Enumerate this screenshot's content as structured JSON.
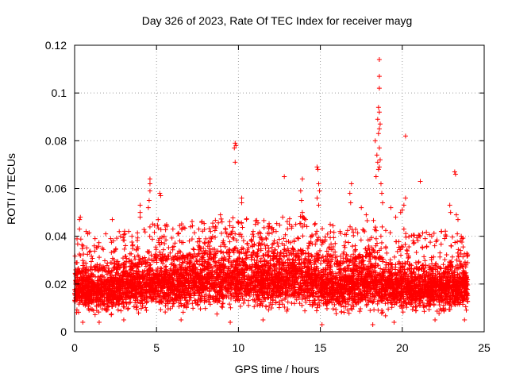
{
  "chart_data": {
    "type": "scatter",
    "title": "Day 326 of 2023, Rate Of TEC Index for receiver mayg",
    "xlabel": "GPS time / hours",
    "ylabel": "ROTI / TECUs",
    "xlim": [
      0,
      25
    ],
    "ylim": [
      0,
      0.12
    ],
    "x_ticks": [
      "0",
      "5",
      "10",
      "15",
      "20",
      "25"
    ],
    "y_ticks": [
      "0",
      "0.02",
      "0.04",
      "0.06",
      "0.08",
      "0.1",
      "0.12"
    ],
    "grid": true,
    "marker": "+",
    "color": "#ff0000",
    "series": [
      {
        "name": "ROTI",
        "baseline_profile": {
          "x": [
            0,
            1,
            2,
            3,
            4,
            5,
            6,
            7,
            8,
            9,
            10,
            11,
            12,
            13,
            14,
            15,
            16,
            17,
            18,
            19,
            20,
            21,
            22,
            23,
            24
          ],
          "typical_low": [
            0.008,
            0.008,
            0.007,
            0.008,
            0.008,
            0.008,
            0.008,
            0.009,
            0.009,
            0.009,
            0.009,
            0.009,
            0.009,
            0.009,
            0.009,
            0.008,
            0.008,
            0.008,
            0.008,
            0.008,
            0.008,
            0.008,
            0.008,
            0.008,
            0.008
          ],
          "typical_high": [
            0.024,
            0.026,
            0.025,
            0.027,
            0.028,
            0.03,
            0.03,
            0.031,
            0.032,
            0.033,
            0.033,
            0.032,
            0.031,
            0.032,
            0.033,
            0.03,
            0.028,
            0.03,
            0.032,
            0.029,
            0.027,
            0.026,
            0.026,
            0.027,
            0.027
          ]
        },
        "notable_points": [
          {
            "x": 0.3,
            "y": 0.047
          },
          {
            "x": 0.35,
            "y": 0.048
          },
          {
            "x": 0.3,
            "y": 0.043
          },
          {
            "x": 0.7,
            "y": 0.042
          },
          {
            "x": 0.8,
            "y": 0.041
          },
          {
            "x": 1.2,
            "y": 0.036
          },
          {
            "x": 1.9,
            "y": 0.041
          },
          {
            "x": 2.3,
            "y": 0.047
          },
          {
            "x": 2.2,
            "y": 0.039
          },
          {
            "x": 3.3,
            "y": 0.042
          },
          {
            "x": 3.5,
            "y": 0.04
          },
          {
            "x": 4.0,
            "y": 0.053
          },
          {
            "x": 4.0,
            "y": 0.05
          },
          {
            "x": 4.0,
            "y": 0.048
          },
          {
            "x": 4.6,
            "y": 0.064
          },
          {
            "x": 4.6,
            "y": 0.062
          },
          {
            "x": 4.6,
            "y": 0.059
          },
          {
            "x": 4.55,
            "y": 0.055
          },
          {
            "x": 4.5,
            "y": 0.052
          },
          {
            "x": 5.2,
            "y": 0.058
          },
          {
            "x": 5.25,
            "y": 0.057
          },
          {
            "x": 5.1,
            "y": 0.047
          },
          {
            "x": 6.0,
            "y": 0.043
          },
          {
            "x": 6.3,
            "y": 0.041
          },
          {
            "x": 7.0,
            "y": 0.038
          },
          {
            "x": 7.6,
            "y": 0.039
          },
          {
            "x": 8.3,
            "y": 0.042
          },
          {
            "x": 8.9,
            "y": 0.049
          },
          {
            "x": 9.0,
            "y": 0.046
          },
          {
            "x": 9.8,
            "y": 0.079
          },
          {
            "x": 9.85,
            "y": 0.078
          },
          {
            "x": 9.75,
            "y": 0.077
          },
          {
            "x": 9.8,
            "y": 0.071
          },
          {
            "x": 10.2,
            "y": 0.056
          },
          {
            "x": 10.2,
            "y": 0.054
          },
          {
            "x": 10.9,
            "y": 0.042
          },
          {
            "x": 11.2,
            "y": 0.041
          },
          {
            "x": 11.9,
            "y": 0.044
          },
          {
            "x": 12.3,
            "y": 0.042
          },
          {
            "x": 12.8,
            "y": 0.065
          },
          {
            "x": 12.7,
            "y": 0.048
          },
          {
            "x": 13.5,
            "y": 0.045
          },
          {
            "x": 13.9,
            "y": 0.064
          },
          {
            "x": 13.8,
            "y": 0.059
          },
          {
            "x": 13.85,
            "y": 0.055
          },
          {
            "x": 13.9,
            "y": 0.05
          },
          {
            "x": 14.8,
            "y": 0.069
          },
          {
            "x": 14.85,
            "y": 0.068
          },
          {
            "x": 14.9,
            "y": 0.062
          },
          {
            "x": 14.95,
            "y": 0.059
          },
          {
            "x": 14.8,
            "y": 0.056
          },
          {
            "x": 14.9,
            "y": 0.053
          },
          {
            "x": 15.6,
            "y": 0.045
          },
          {
            "x": 16.2,
            "y": 0.042
          },
          {
            "x": 16.9,
            "y": 0.062
          },
          {
            "x": 16.8,
            "y": 0.058
          },
          {
            "x": 16.85,
            "y": 0.054
          },
          {
            "x": 17.5,
            "y": 0.052
          },
          {
            "x": 17.8,
            "y": 0.049
          },
          {
            "x": 18.45,
            "y": 0.074
          },
          {
            "x": 18.5,
            "y": 0.071
          },
          {
            "x": 18.55,
            "y": 0.068
          },
          {
            "x": 18.4,
            "y": 0.065
          },
          {
            "x": 18.35,
            "y": 0.08
          },
          {
            "x": 18.6,
            "y": 0.114
          },
          {
            "x": 18.6,
            "y": 0.107
          },
          {
            "x": 18.6,
            "y": 0.102
          },
          {
            "x": 18.55,
            "y": 0.094
          },
          {
            "x": 18.6,
            "y": 0.092
          },
          {
            "x": 18.5,
            "y": 0.089
          },
          {
            "x": 18.65,
            "y": 0.087
          },
          {
            "x": 18.6,
            "y": 0.085
          },
          {
            "x": 18.55,
            "y": 0.083
          },
          {
            "x": 18.6,
            "y": 0.077
          },
          {
            "x": 18.65,
            "y": 0.072
          },
          {
            "x": 18.6,
            "y": 0.069
          },
          {
            "x": 18.7,
            "y": 0.062
          },
          {
            "x": 18.75,
            "y": 0.058
          },
          {
            "x": 18.8,
            "y": 0.054
          },
          {
            "x": 19.3,
            "y": 0.052
          },
          {
            "x": 19.6,
            "y": 0.048
          },
          {
            "x": 20.2,
            "y": 0.082
          },
          {
            "x": 20.2,
            "y": 0.056
          },
          {
            "x": 20.1,
            "y": 0.053
          },
          {
            "x": 20.0,
            "y": 0.051
          },
          {
            "x": 19.9,
            "y": 0.05
          },
          {
            "x": 20.1,
            "y": 0.043
          },
          {
            "x": 21.1,
            "y": 0.063
          },
          {
            "x": 21.4,
            "y": 0.039
          },
          {
            "x": 21.8,
            "y": 0.04
          },
          {
            "x": 22.4,
            "y": 0.042
          },
          {
            "x": 22.9,
            "y": 0.053
          },
          {
            "x": 22.95,
            "y": 0.05
          },
          {
            "x": 23.2,
            "y": 0.067
          },
          {
            "x": 23.25,
            "y": 0.066
          },
          {
            "x": 23.3,
            "y": 0.049
          },
          {
            "x": 23.4,
            "y": 0.047
          },
          {
            "x": 23.6,
            "y": 0.04
          },
          {
            "x": 0.5,
            "y": 0.004
          },
          {
            "x": 1.5,
            "y": 0.004
          },
          {
            "x": 3.0,
            "y": 0.005
          },
          {
            "x": 6.5,
            "y": 0.005
          },
          {
            "x": 9.5,
            "y": 0.004
          },
          {
            "x": 11.5,
            "y": 0.005
          },
          {
            "x": 15.1,
            "y": 0.003
          },
          {
            "x": 18.2,
            "y": 0.003
          },
          {
            "x": 19.5,
            "y": 0.004
          },
          {
            "x": 22.0,
            "y": 0.005
          },
          {
            "x": 23.8,
            "y": 0.005
          }
        ]
      }
    ]
  }
}
